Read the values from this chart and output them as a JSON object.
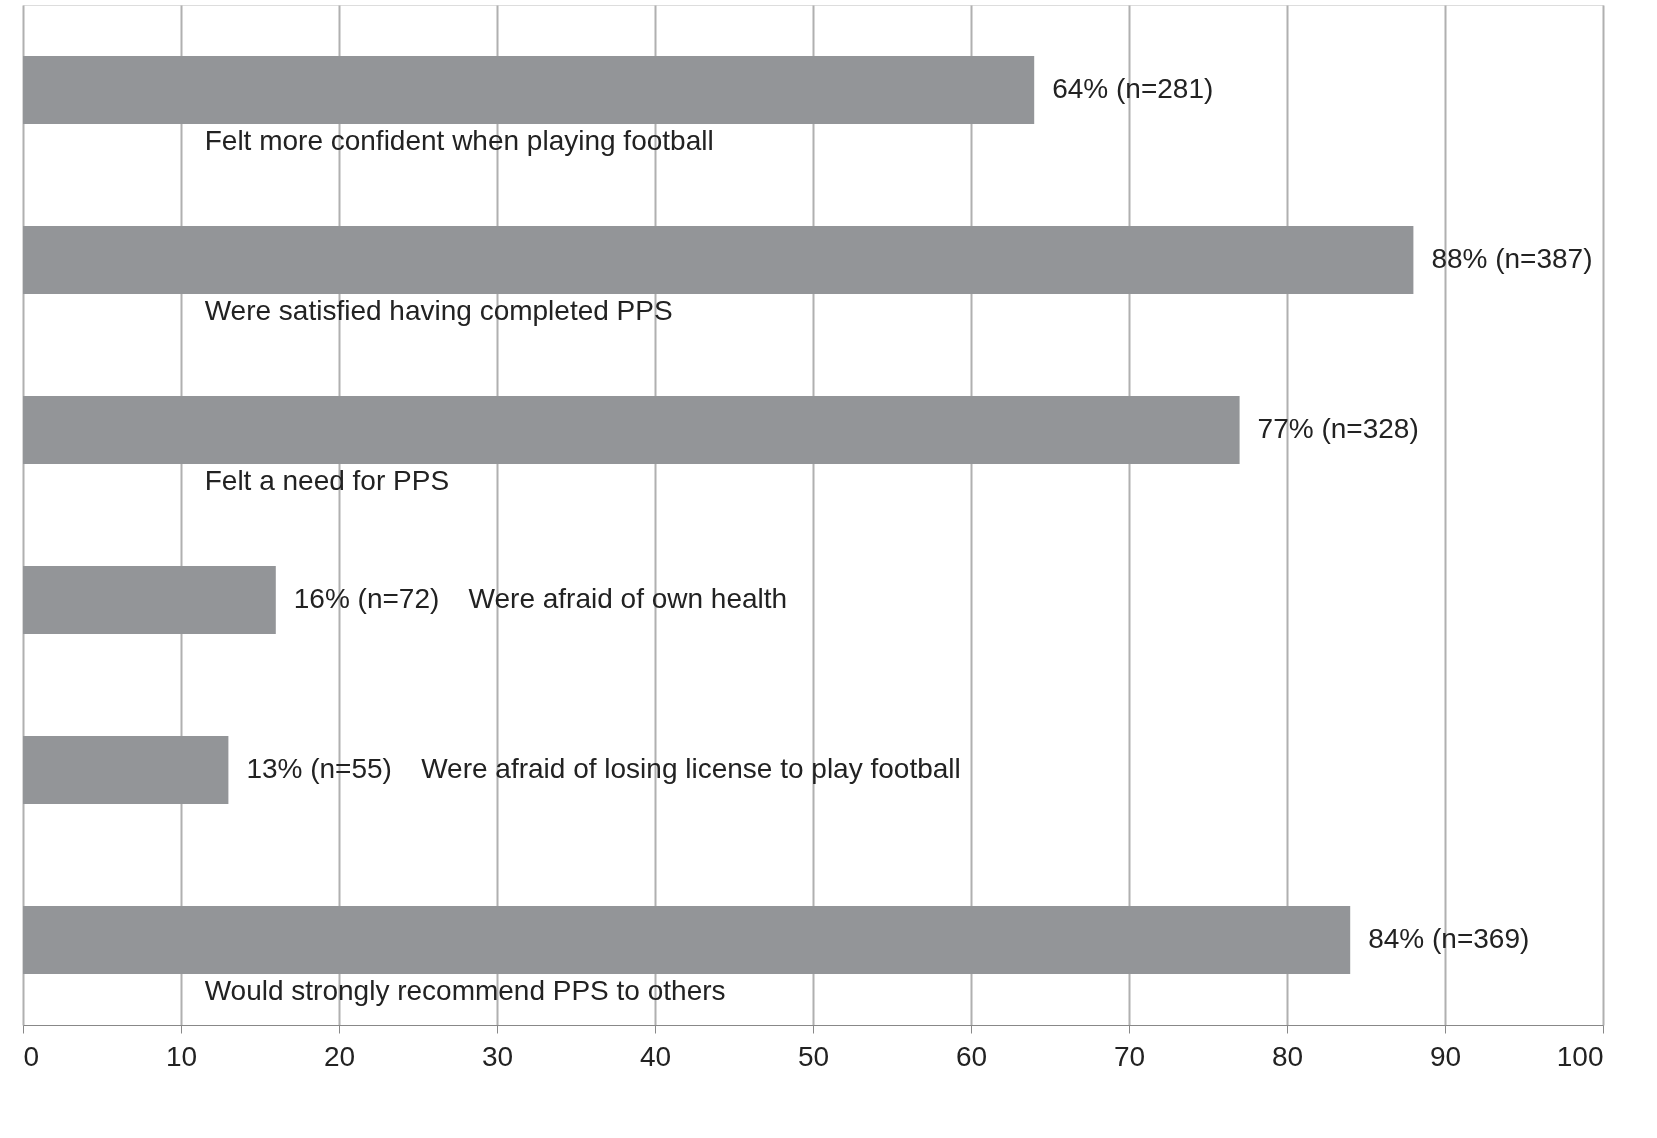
{
  "chart_data": {
    "type": "bar",
    "orientation": "horizontal",
    "categories": [
      "Felt more confident when playing football",
      "Were satisfied having completed PPS",
      "Felt a need for PPS",
      "Were afraid of own health",
      "Were afraid of losing license to play football",
      "Would strongly recommend PPS to others"
    ],
    "values": [
      64,
      88,
      77,
      16,
      13,
      84
    ],
    "value_labels": [
      "64% (n=281)",
      "88% (n=387)",
      "77% (n=328)",
      "16% (n=72)",
      "13% (n=55)",
      "84% (n=369)"
    ],
    "color": "#939598",
    "xlim": [
      0,
      100
    ],
    "xticks": [
      0,
      10,
      20,
      30,
      40,
      50,
      60,
      70,
      80,
      90,
      100
    ],
    "grid": "x",
    "tick_labels": "x"
  }
}
